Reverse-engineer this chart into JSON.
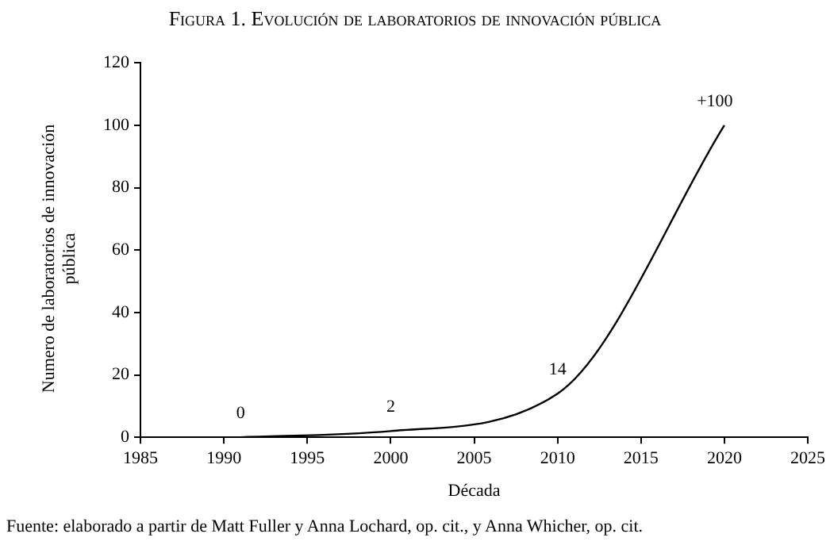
{
  "chart_data": {
    "type": "line",
    "title": "Figura 1. Evolución de laboratorios de innovación pública",
    "xlabel": "Década",
    "ylabel": "Numero de laboratorios de innovación pública",
    "x": [
      1991,
      2000,
      2010,
      2020
    ],
    "series": [
      {
        "color": "#000000",
        "values": [
          0,
          2,
          14,
          100
        ],
        "value_labels": [
          "0",
          "2",
          "14",
          "+100"
        ]
      }
    ],
    "xlim": [
      1985,
      2025
    ],
    "xticks": [
      1985,
      1990,
      1995,
      2000,
      2005,
      2010,
      2015,
      2020,
      2025
    ],
    "ylim": [
      0,
      120
    ],
    "yticks": [
      0,
      20,
      40,
      60,
      80,
      100,
      120
    ],
    "grid": false,
    "legend": false,
    "marker": "none",
    "line_style": "solid",
    "annotations": [
      "Fuente: elaborado a partir de Matt Fuller y Anna Lochard, op. cit., y Anna Whicher, op. cit."
    ]
  }
}
